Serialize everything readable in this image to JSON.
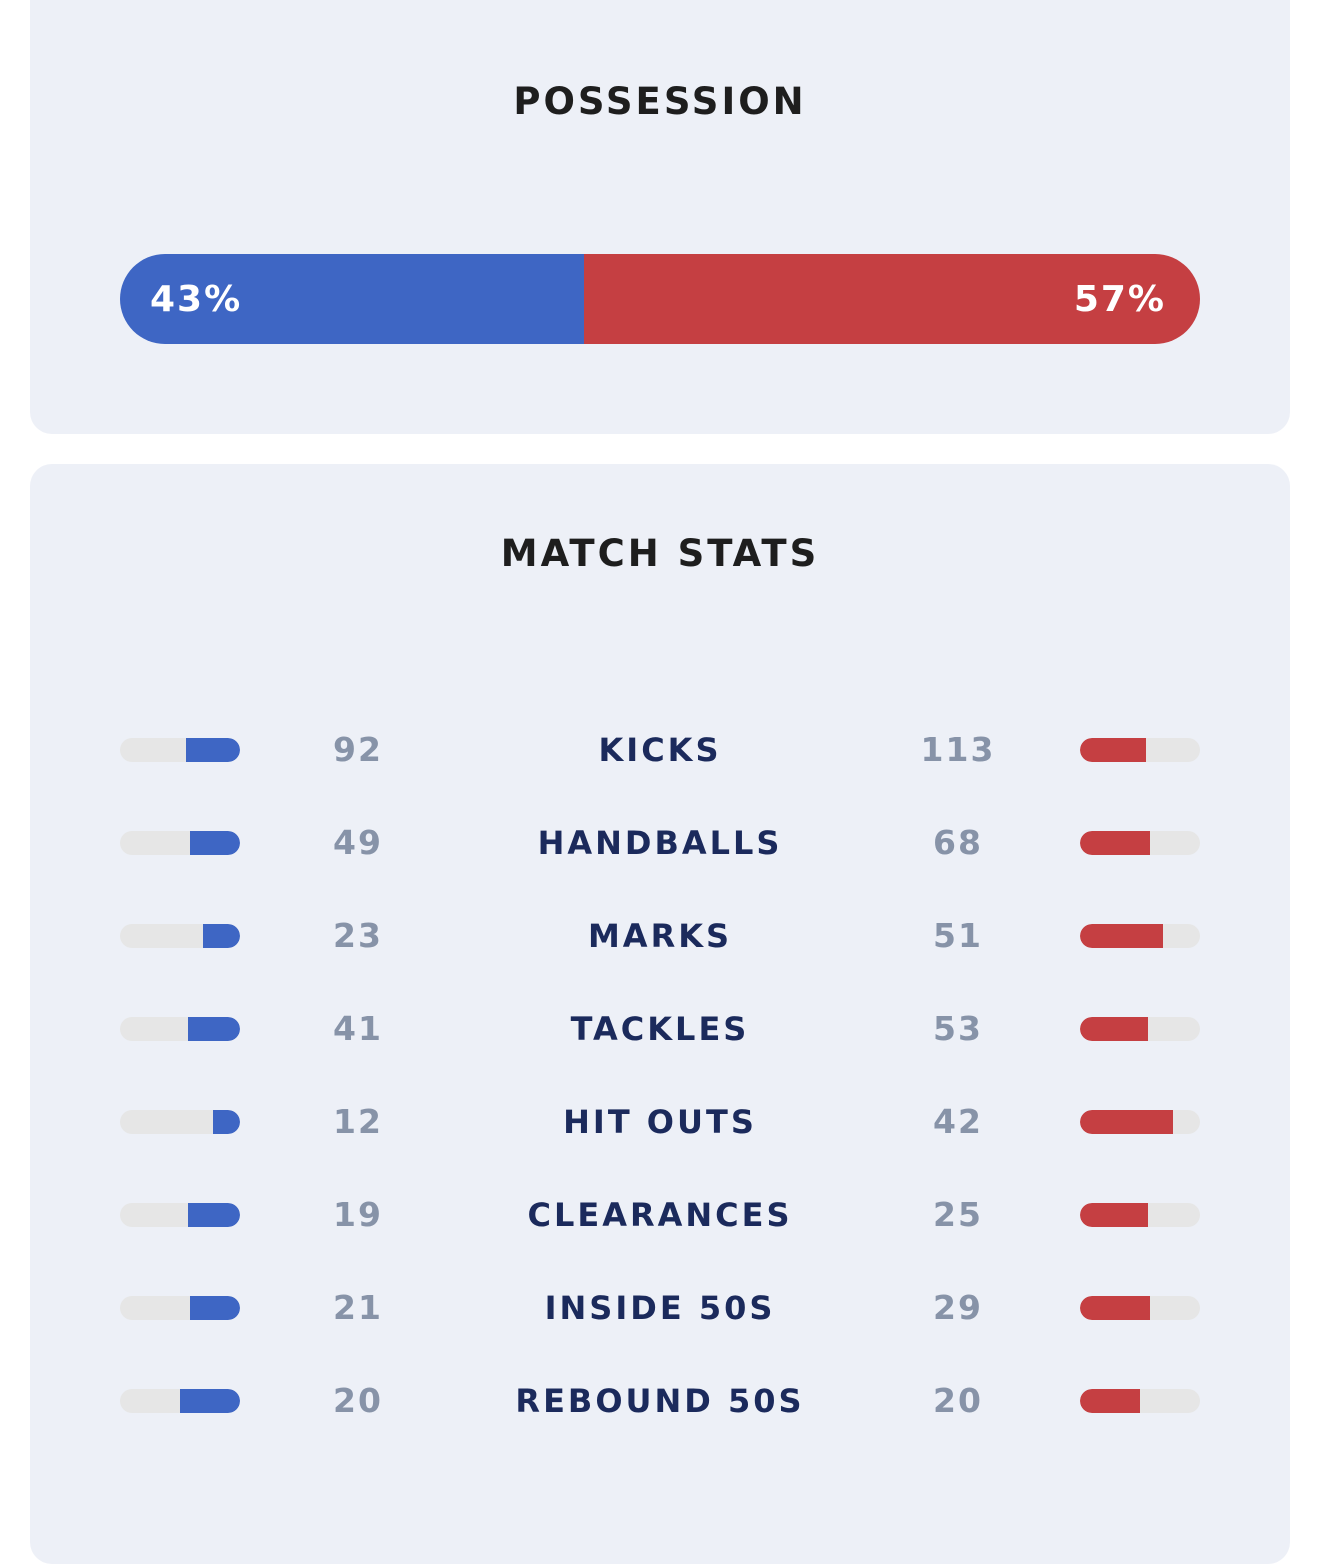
{
  "possession": {
    "title": "POSSESSION",
    "home_pct": 43,
    "away_pct": 57,
    "home_label": "43%",
    "away_label": "57%"
  },
  "match_stats": {
    "title": "MATCH STATS",
    "rows": [
      {
        "label": "KICKS",
        "home": 92,
        "away": 113
      },
      {
        "label": "HANDBALLS",
        "home": 49,
        "away": 68
      },
      {
        "label": "MARKS",
        "home": 23,
        "away": 51
      },
      {
        "label": "TACKLES",
        "home": 41,
        "away": 53
      },
      {
        "label": "HIT OUTS",
        "home": 12,
        "away": 42
      },
      {
        "label": "CLEARANCES",
        "home": 19,
        "away": 25
      },
      {
        "label": "INSIDE 50S",
        "home": 21,
        "away": 29
      },
      {
        "label": "REBOUND 50S",
        "home": 20,
        "away": 20
      }
    ]
  },
  "colors": {
    "home": "#3e66c4",
    "away": "#c53f42"
  }
}
